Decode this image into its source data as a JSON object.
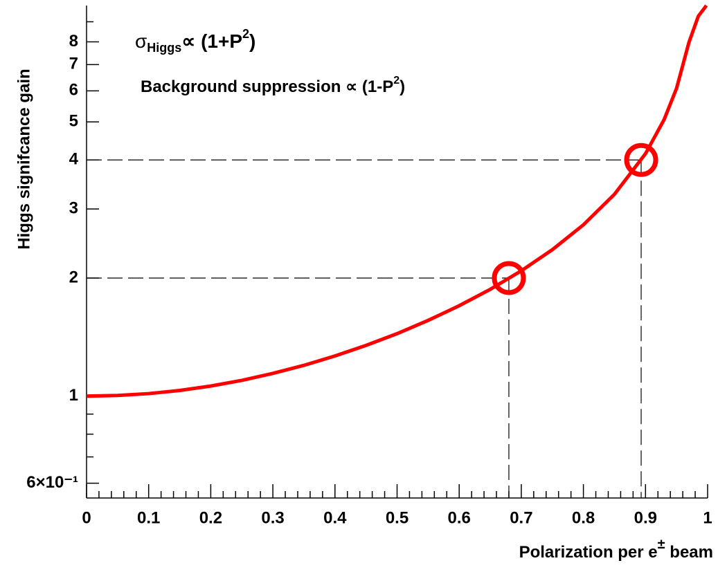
{
  "chart_data": {
    "type": "line",
    "annotations": [
      {
        "sigma": "σ",
        "sub": "Higgs",
        "rest": "∝ (1+P",
        "sup": "2",
        "close": ")"
      },
      {
        "rest": "Background suppression ∝ (1-P",
        "sup": "2",
        "close": ")"
      }
    ],
    "xlabel": {
      "text": "Polarization per e",
      "sup": "±",
      "rest": " beam"
    },
    "ylabel": "Higgs signifcance gain",
    "x": [
      0,
      0.05,
      0.1,
      0.15,
      0.2,
      0.25,
      0.3,
      0.35,
      0.4,
      0.45,
      0.5,
      0.55,
      0.6,
      0.65,
      0.7,
      0.75,
      0.8,
      0.85,
      0.9,
      0.93,
      0.95,
      0.97,
      0.985,
      0.998
    ],
    "series": [
      {
        "color": "#ff0000",
        "values": [
          1,
          1.004,
          1.015,
          1.034,
          1.061,
          1.097,
          1.143,
          1.198,
          1.266,
          1.347,
          1.443,
          1.56,
          1.7,
          1.872,
          2.087,
          2.362,
          2.733,
          3.27,
          4.15,
          5.07,
          6.09,
          7.98,
          9.3,
          9.9
        ]
      }
    ],
    "markers": [
      {
        "x": 0.68,
        "y": 2
      },
      {
        "x": 0.893,
        "y": 4
      }
    ],
    "xlim": [
      0,
      1
    ],
    "xticks": [
      0,
      0.1,
      0.2,
      0.3,
      0.4,
      0.5,
      0.6,
      0.7,
      0.8,
      0.9,
      1
    ],
    "ylim": [
      0.55,
      9.9
    ],
    "log_y": true,
    "yticks": [
      {
        "value": 0.6,
        "label": "6×10⁻¹"
      },
      1,
      2,
      3,
      4,
      5,
      6,
      7,
      8
    ],
    "yminor": [
      0.7,
      0.8,
      0.9,
      9
    ]
  }
}
